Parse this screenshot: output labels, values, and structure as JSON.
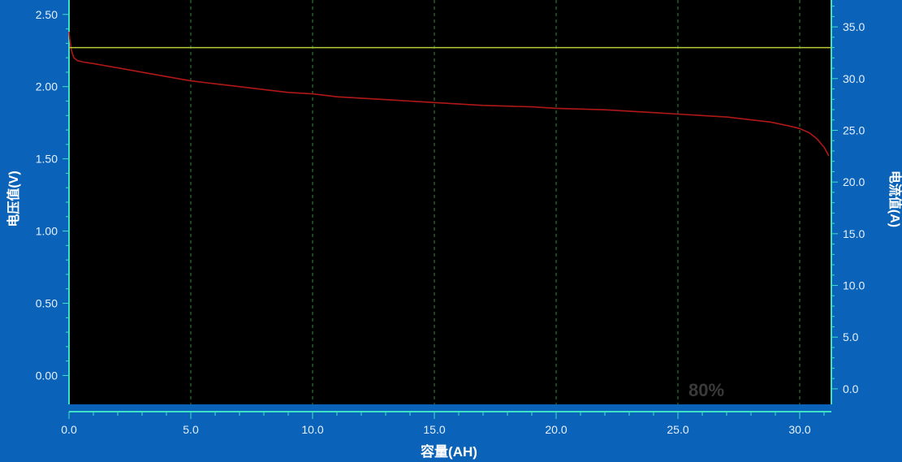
{
  "chart_data": {
    "type": "line",
    "title": "",
    "xlabel": "容量(AH)",
    "ylabel_left": "电压值(V)",
    "ylabel_right": "电流值(A)",
    "xlim": [
      0,
      31.3
    ],
    "ylim_left": [
      -0.2,
      2.6
    ],
    "ylim_right": [
      -1.5,
      37.6
    ],
    "x_ticks": [
      "0.0",
      "5.0",
      "10.0",
      "15.0",
      "20.0",
      "25.0",
      "30.0"
    ],
    "y_left_ticks": [
      "0.00",
      "0.50",
      "1.00",
      "1.50",
      "2.00",
      "2.50"
    ],
    "y_right_ticks": [
      "0.0",
      "5.0",
      "10.0",
      "15.0",
      "20.0",
      "25.0",
      "30.0",
      "35.0"
    ],
    "grid": "vertical dashed at major x ticks",
    "series": [
      {
        "axis": "left",
        "color": "#b01818",
        "x": [
          0.0,
          0.03,
          0.1,
          0.2,
          0.35,
          0.6,
          1,
          2,
          3,
          4,
          5,
          6,
          7,
          8,
          9,
          10,
          11,
          12,
          13,
          14,
          15,
          16,
          17,
          18,
          19,
          20,
          21,
          22,
          23,
          24,
          25,
          26,
          27,
          28,
          28.8,
          29.5,
          30.0,
          30.4,
          30.7,
          31.0,
          31.2
        ],
        "y": [
          2.38,
          2.33,
          2.25,
          2.2,
          2.18,
          2.17,
          2.16,
          2.13,
          2.1,
          2.07,
          2.04,
          2.02,
          2.0,
          1.98,
          1.96,
          1.95,
          1.93,
          1.92,
          1.91,
          1.9,
          1.89,
          1.88,
          1.87,
          1.865,
          1.86,
          1.85,
          1.845,
          1.84,
          1.83,
          1.82,
          1.81,
          1.8,
          1.79,
          1.77,
          1.755,
          1.73,
          1.71,
          1.68,
          1.64,
          1.58,
          1.52
        ]
      },
      {
        "axis": "right",
        "color": "#b8cc3a",
        "x": [
          0.0,
          31.3
        ],
        "y": [
          33.0,
          33.0
        ]
      }
    ]
  },
  "watermark": "80%",
  "colors": {
    "background": "#0a63b8",
    "plot_area": "#000000",
    "axis_line": "#3fe0c8",
    "grid": "#2e8b3a",
    "tick_text": "#e8f0ff"
  }
}
